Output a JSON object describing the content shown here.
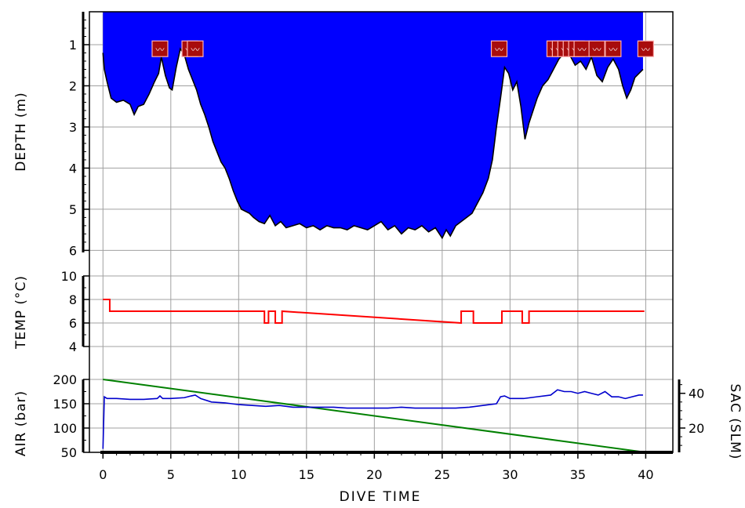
{
  "chart_data": {
    "type": "line",
    "xlabel": "DIVE TIME",
    "x_ticks": [
      0,
      5,
      10,
      15,
      20,
      25,
      30,
      35,
      40
    ],
    "xlim": [
      -1,
      42
    ],
    "grid": true,
    "colors": {
      "depth_fill": "#0000ff",
      "depth_edge": "#000000",
      "temperature": "#ff0000",
      "air": "#008000",
      "sac": "#0000cd",
      "marker_fill": "#a80c0c",
      "marker_edge": "#ffb0b0",
      "grid": "#a0a0a0"
    },
    "panels": {
      "depth": {
        "ylabel": "DEPTH (m)",
        "y_ticks": [
          1,
          2,
          3,
          4,
          5,
          6
        ],
        "ylim": [
          0.2,
          6.05
        ],
        "inverted": true,
        "series": [
          {
            "name": "Depth",
            "x": [
              0.0,
              0.1,
              0.3,
              0.6,
              1.0,
              1.5,
              2.0,
              2.3,
              2.6,
              3.0,
              3.4,
              3.8,
              4.1,
              4.3,
              4.6,
              4.9,
              5.1,
              5.4,
              5.7,
              6.0,
              6.3,
              6.6,
              6.9,
              7.2,
              7.5,
              7.8,
              8.1,
              8.4,
              8.7,
              9.0,
              9.3,
              9.6,
              9.9,
              10.2,
              10.5,
              10.8,
              11.1,
              11.5,
              11.9,
              12.3,
              12.7,
              13.1,
              13.5,
              14.0,
              14.5,
              15.0,
              15.5,
              16.0,
              16.5,
              17.0,
              17.5,
              18.0,
              18.5,
              19.0,
              19.5,
              20.0,
              20.5,
              21.0,
              21.5,
              22.0,
              22.5,
              23.0,
              23.5,
              24.0,
              24.5,
              25.0,
              25.3,
              25.6,
              26.0,
              26.4,
              26.8,
              27.2,
              27.6,
              28.0,
              28.4,
              28.7,
              29.0,
              29.3,
              29.6,
              29.9,
              30.2,
              30.5,
              30.8,
              31.1,
              31.4,
              31.7,
              32.0,
              32.4,
              32.8,
              33.2,
              33.6,
              34.0,
              34.4,
              34.8,
              35.2,
              35.6,
              36.0,
              36.4,
              36.8,
              37.2,
              37.6,
              38.0,
              38.3,
              38.6,
              38.9,
              39.2,
              39.5,
              39.8
            ],
            "values": [
              1.2,
              1.6,
              1.9,
              2.3,
              2.4,
              2.35,
              2.45,
              2.7,
              2.5,
              2.45,
              2.2,
              1.9,
              1.7,
              1.3,
              1.75,
              2.05,
              2.1,
              1.55,
              1.1,
              1.25,
              1.6,
              1.85,
              2.1,
              2.45,
              2.7,
              3.0,
              3.35,
              3.6,
              3.85,
              4.0,
              4.25,
              4.55,
              4.8,
              5.0,
              5.05,
              5.1,
              5.2,
              5.3,
              5.35,
              5.15,
              5.4,
              5.3,
              5.45,
              5.4,
              5.35,
              5.45,
              5.4,
              5.5,
              5.4,
              5.45,
              5.45,
              5.5,
              5.4,
              5.45,
              5.5,
              5.4,
              5.3,
              5.5,
              5.4,
              5.6,
              5.45,
              5.5,
              5.4,
              5.55,
              5.45,
              5.7,
              5.5,
              5.65,
              5.4,
              5.3,
              5.2,
              5.1,
              4.85,
              4.6,
              4.25,
              3.8,
              3.0,
              2.3,
              1.55,
              1.7,
              2.1,
              1.9,
              2.5,
              3.3,
              2.9,
              2.6,
              2.3,
              2.0,
              1.85,
              1.6,
              1.35,
              1.2,
              1.25,
              1.5,
              1.4,
              1.6,
              1.3,
              1.75,
              1.9,
              1.55,
              1.35,
              1.6,
              2.0,
              2.3,
              2.1,
              1.8,
              1.7,
              1.6
            ]
          }
        ]
      },
      "temperature": {
        "ylabel": "TEMP (°C)",
        "y_ticks": [
          4,
          6,
          8,
          10
        ],
        "ylim": [
          4,
          10
        ],
        "series": [
          {
            "name": "Temperature",
            "x": [
              0.0,
              0.5,
              0.5,
              11.9,
              11.9,
              12.2,
              12.2,
              12.7,
              12.7,
              13.2,
              13.2,
              26.4,
              26.4,
              27.3,
              27.3,
              29.4,
              29.4,
              30.9,
              30.9,
              31.4,
              31.4,
              39.9
            ],
            "values": [
              8,
              8,
              7,
              7,
              6,
              6,
              7,
              7,
              6,
              6,
              7,
              6,
              7,
              7,
              6,
              6,
              7,
              7,
              6,
              6,
              7,
              7
            ]
          }
        ]
      },
      "air": {
        "ylabel": "AIR (bar)",
        "y_ticks": [
          50,
          100,
          150,
          200
        ],
        "ylim": [
          50,
          200
        ],
        "y2label": "SAC (SLM)",
        "y2_ticks": [
          20,
          40
        ],
        "y2lim": [
          6,
          48
        ],
        "series": [
          {
            "name": "Air",
            "axis": "left",
            "x": [
              0,
              40
            ],
            "values": [
              200,
              50
            ]
          },
          {
            "name": "SAC",
            "axis": "right",
            "x": [
              0.0,
              0.1,
              0.3,
              1.0,
              2.0,
              3.0,
              4.0,
              4.2,
              4.4,
              5.0,
              6.0,
              6.5,
              6.8,
              7.2,
              8.0,
              9.0,
              10.0,
              11.0,
              12.0,
              13.0,
              14.0,
              15.0,
              16.0,
              17.0,
              18.0,
              19.0,
              20.0,
              21.0,
              22.0,
              23.0,
              24.0,
              25.0,
              26.0,
              27.0,
              28.0,
              29.0,
              29.3,
              29.6,
              30.0,
              31.0,
              32.0,
              33.0,
              33.5,
              34.0,
              34.5,
              35.0,
              35.5,
              36.0,
              36.5,
              37.0,
              37.5,
              38.0,
              38.5,
              39.0,
              39.5,
              39.8
            ],
            "values": [
              8,
              38,
              37,
              37,
              36.5,
              36.5,
              37,
              38.5,
              37,
              37,
              37.5,
              38.5,
              39,
              37,
              35,
              34.5,
              33.5,
              33,
              32.5,
              33,
              32,
              32,
              32,
              32,
              31.5,
              31.5,
              31.5,
              31.5,
              32,
              31.5,
              31.5,
              31.5,
              31.5,
              32,
              33,
              34,
              38,
              38.5,
              37,
              37,
              38,
              39,
              42,
              41,
              41,
              40,
              41,
              40,
              39,
              41,
              38,
              38,
              37,
              38,
              39,
              39
            ]
          }
        ]
      }
    },
    "markers": {
      "name": "Events",
      "glyph": "〰",
      "depth": 1.1,
      "x": [
        4.2,
        6.4,
        6.8,
        29.2,
        33.3,
        33.7,
        34.1,
        34.5,
        34.9,
        35.3,
        36.4,
        37.6,
        40.0
      ]
    }
  }
}
